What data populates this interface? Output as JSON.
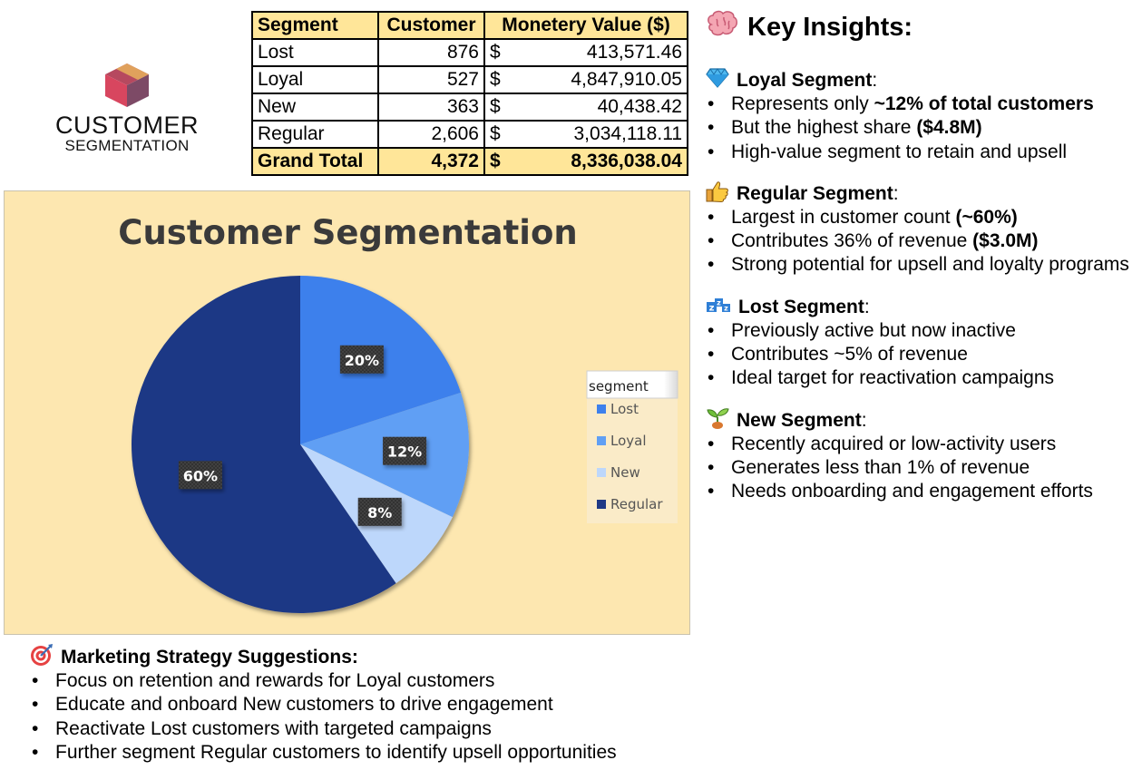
{
  "logo": {
    "line1": "CUSTOMER",
    "line2": "SEGMENTATION"
  },
  "table": {
    "headers": [
      "Segment",
      "Customer",
      "Monetery Value ($)"
    ],
    "currency": "$",
    "rows": [
      {
        "segment": "Lost",
        "customers": "876",
        "value": "413,571.46"
      },
      {
        "segment": "Loyal",
        "customers": "527",
        "value": "4,847,910.05"
      },
      {
        "segment": "New",
        "customers": "363",
        "value": "40,438.42"
      },
      {
        "segment": "Regular",
        "customers": "2,606",
        "value": "3,034,118.11"
      }
    ],
    "total": {
      "segment": "Grand Total",
      "customers": "4,372",
      "value": "8,336,038.04"
    }
  },
  "chart_data": {
    "type": "pie",
    "title": "Customer Segmentation",
    "legend_title": "segment",
    "legend_position": "right",
    "categories": [
      "Lost",
      "Loyal",
      "New",
      "Regular"
    ],
    "values": [
      876,
      527,
      363,
      2606
    ],
    "data_labels": [
      "20%",
      "12%",
      "8%",
      "60%"
    ],
    "colors": [
      "#3d80ec",
      "#609ff4",
      "#bdd7fb",
      "#1f3985"
    ]
  },
  "insights": {
    "title": "Key Insights:",
    "sections": [
      {
        "icon": "gem-icon",
        "name": "Loyal Segment",
        "suffix": ":",
        "bullets": [
          {
            "parts": [
              {
                "t": "Represents only ",
                "b": false
              },
              {
                "t": "~12% of total customers",
                "b": true
              }
            ]
          },
          {
            "parts": [
              {
                "t": "But the highest share ",
                "b": false
              },
              {
                "t": "($4.8M)",
                "b": true
              }
            ]
          },
          {
            "parts": [
              {
                "t": "High-value segment to retain and upsell",
                "b": false
              }
            ]
          }
        ]
      },
      {
        "icon": "thumbs-up-icon",
        "name": "Regular Segment",
        "suffix": ":",
        "bullets": [
          {
            "parts": [
              {
                "t": "Largest in customer count ",
                "b": false
              },
              {
                "t": "(~60%)",
                "b": true
              }
            ]
          },
          {
            "parts": [
              {
                "t": "Contributes 36% of revenue ",
                "b": false
              },
              {
                "t": "($3.0M)",
                "b": true
              }
            ]
          },
          {
            "parts": [
              {
                "t": "Strong potential for upsell and loyalty programs",
                "b": false
              }
            ]
          }
        ]
      },
      {
        "icon": "zzz-icon",
        "name": "Lost Segment",
        "suffix": ":",
        "bullets": [
          {
            "parts": [
              {
                "t": "Previously active but now inactive",
                "b": false
              }
            ]
          },
          {
            "parts": [
              {
                "t": "Contributes ~5% of revenue",
                "b": false
              }
            ]
          },
          {
            "parts": [
              {
                "t": "Ideal target for reactivation campaigns",
                "b": false
              }
            ]
          }
        ]
      },
      {
        "icon": "seedling-icon",
        "name": "New Segment",
        "suffix": ":",
        "bullets": [
          {
            "parts": [
              {
                "t": "Recently acquired or low-activity users",
                "b": false
              }
            ]
          },
          {
            "parts": [
              {
                "t": "Generates less than 1% of revenue",
                "b": false
              }
            ]
          },
          {
            "parts": [
              {
                "t": "Needs onboarding and engagement efforts",
                "b": false
              }
            ]
          }
        ]
      }
    ]
  },
  "strategy": {
    "icon": "target-icon",
    "title": "Marketing Strategy Suggestions:",
    "bullets": [
      "Focus on retention and rewards for Loyal customers",
      "Educate and onboard New customers to drive engagement",
      "Reactivate Lost customers with targeted campaigns",
      "Further segment Regular customers to identify upsell opportunities"
    ]
  }
}
